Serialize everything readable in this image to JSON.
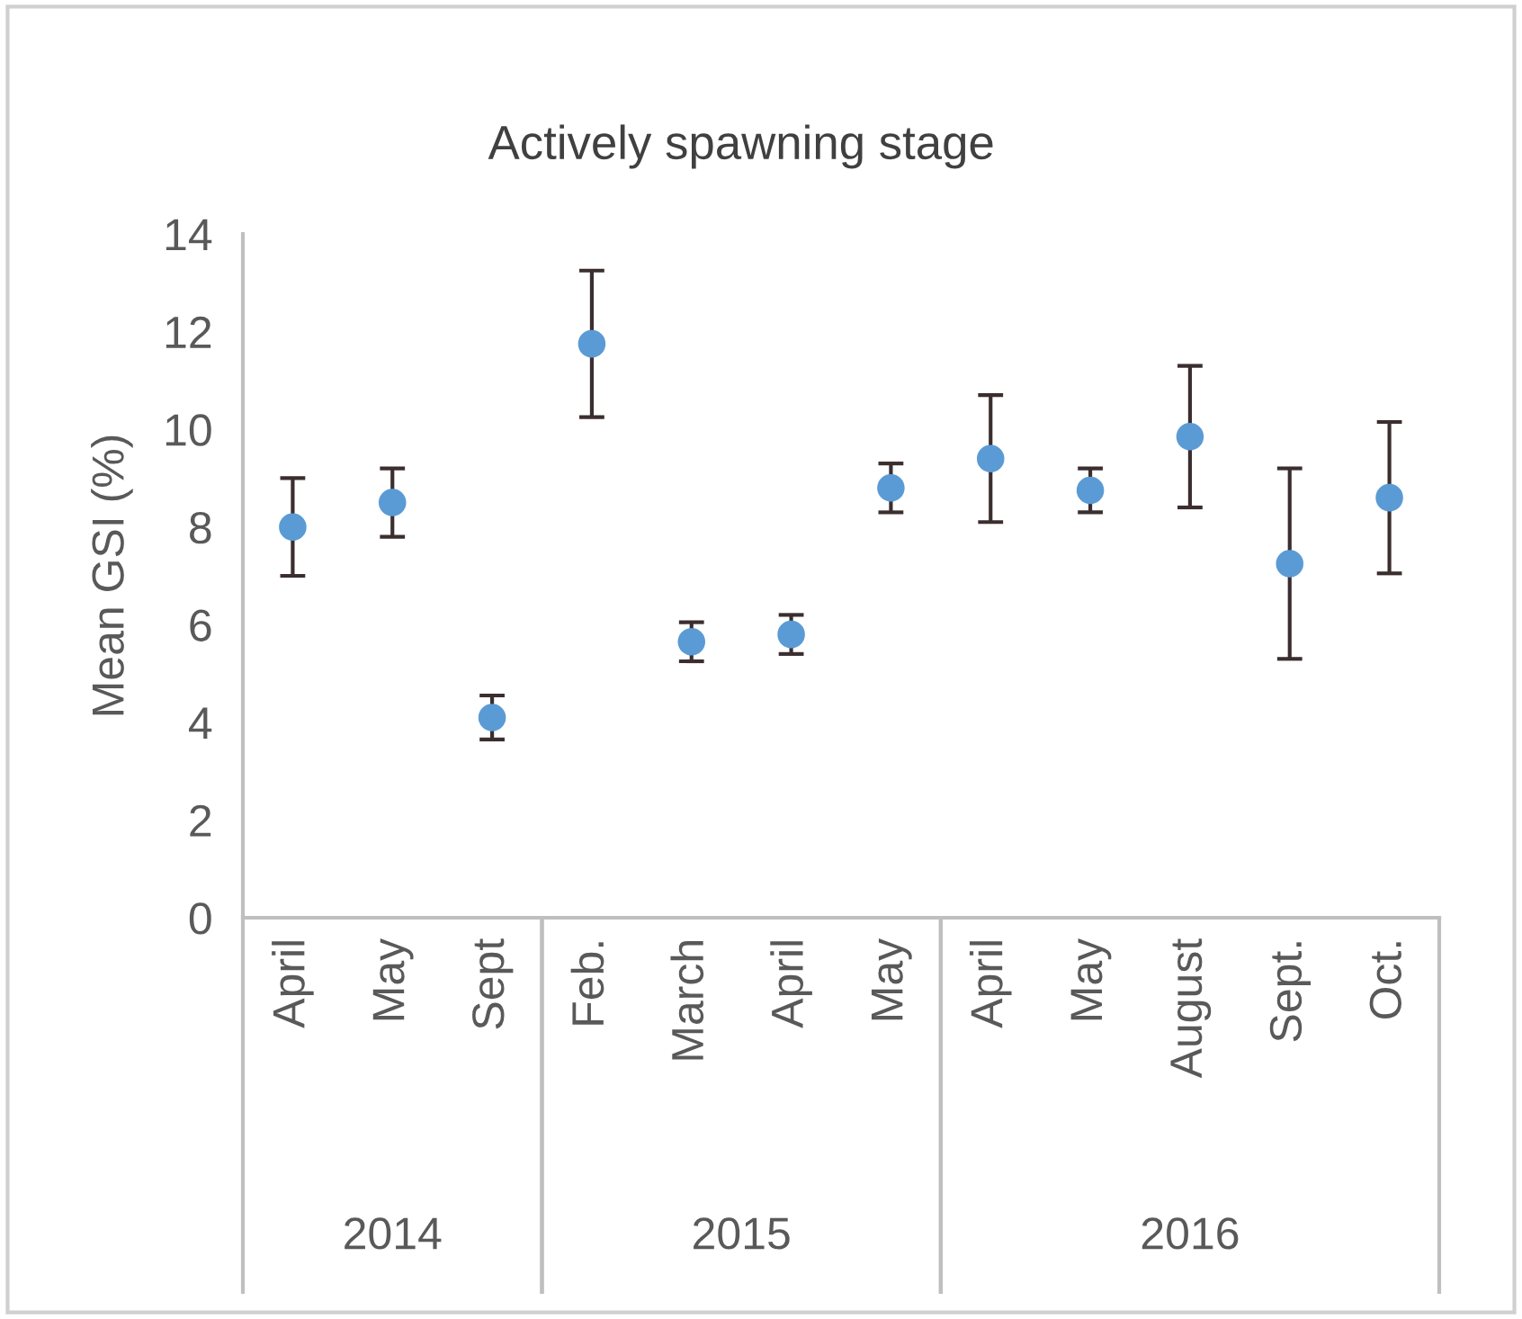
{
  "chart_data": [
    {
      "type": "scatter",
      "ylabel": "Mean GSI (%)",
      "xlabel": "2014",
      "categories": [
        "April",
        "May",
        "Sept"
      ],
      "series": [
        {
          "color": "#5b9bd5",
          "values": [
            8.0,
            8.5,
            4.1
          ],
          "errors": [
            1.0,
            0.7,
            0.45
          ]
        }
      ],
      "ylim": [
        0,
        14
      ],
      "yticks": [
        0,
        2,
        4,
        6,
        8,
        10,
        12,
        14
      ],
      "marker": "circle"
    },
    {
      "type": "scatter",
      "title": "Actively spawning stage",
      "xlabel": "2015",
      "categories": [
        "Feb.",
        "March",
        "April",
        "May"
      ],
      "series": [
        {
          "color": "#5b9bd5",
          "values": [
            11.75,
            5.65,
            5.8,
            8.8
          ],
          "errors": [
            1.5,
            0.4,
            0.4,
            0.5
          ]
        }
      ],
      "ylim": [
        0,
        14
      ],
      "tick_labels": "x",
      "marker": "circle"
    },
    {
      "type": "scatter",
      "xlabel": "2016",
      "categories": [
        "April",
        "May",
        "August",
        "Sept.",
        "Oct."
      ],
      "series": [
        {
          "color": "#5b9bd5",
          "values": [
            9.4,
            8.75,
            9.85,
            7.25,
            8.6
          ],
          "errors": [
            1.3,
            0.45,
            1.45,
            1.95,
            1.55
          ]
        }
      ],
      "ylim": [
        0,
        14
      ],
      "tick_labels": "x",
      "marker": "circle"
    }
  ]
}
